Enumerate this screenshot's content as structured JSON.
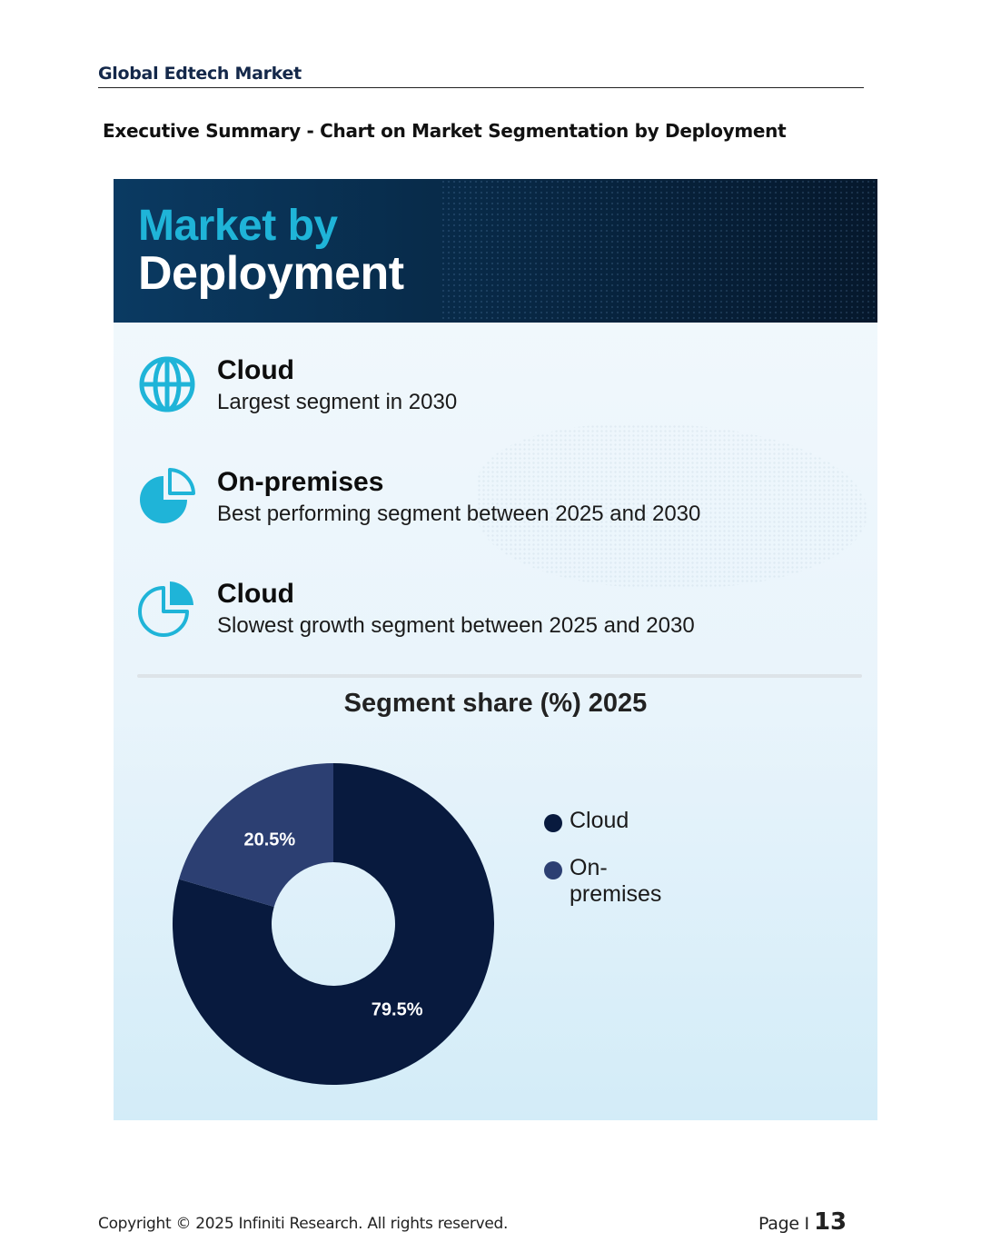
{
  "header": {
    "title": "Global Edtech Market"
  },
  "section_title": "Executive Summary - Chart on Market Segmentation by Deployment",
  "banner": {
    "line1": "Market by",
    "line2": "Deployment"
  },
  "highlights": [
    {
      "icon": "globe-icon",
      "name": "Cloud",
      "desc": "Largest segment in 2030"
    },
    {
      "icon": "pie-chart-icon",
      "name": "On-premises",
      "desc": "Best performing segment between 2025 and 2030"
    },
    {
      "icon": "pie-chart-outline-icon",
      "name": "Cloud",
      "desc": "Slowest growth segment between 2025 and 2030"
    }
  ],
  "colors": {
    "accent": "#1fb4d8",
    "cloud": "#081a3e",
    "on_premises": "#2c3f72"
  },
  "chart_data": {
    "type": "pie",
    "title": "Segment share (%) 2025",
    "categories": [
      "Cloud",
      "On-premises"
    ],
    "values": [
      79.5,
      20.5
    ],
    "data_labels": [
      "79.5%",
      "20.5%"
    ],
    "colors": [
      "#081a3e",
      "#2c3f72"
    ],
    "donut": true,
    "legend_position": "right"
  },
  "footer": {
    "copyright": "Copyright © 2025 Infiniti Research. All rights reserved.",
    "page_label": "Page I",
    "page_number": "13"
  }
}
